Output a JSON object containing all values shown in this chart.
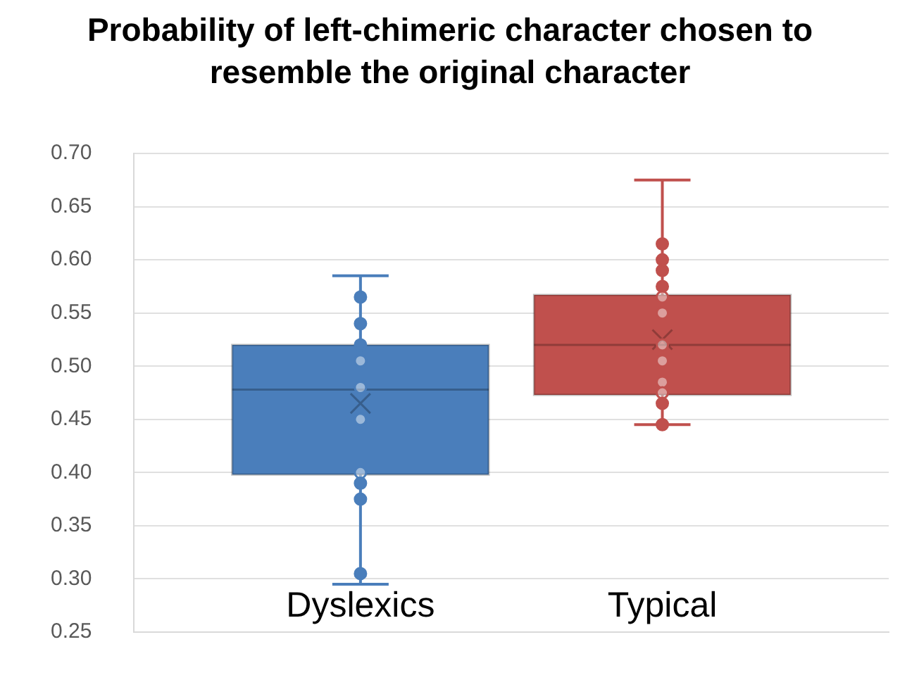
{
  "chart_data": {
    "type": "box",
    "title": "Probability of left-chimeric character chosen to resemble the original character",
    "categories": [
      "Dyslexics",
      "Typical"
    ],
    "colors": [
      "#4a7ebb",
      "#c0504d"
    ],
    "boxes": [
      {
        "low": 0.295,
        "q1": 0.398,
        "median": 0.478,
        "q3": 0.52,
        "high": 0.585,
        "mean": 0.465
      },
      {
        "low": 0.445,
        "q1": 0.473,
        "median": 0.52,
        "q3": 0.567,
        "high": 0.675,
        "mean": 0.525
      }
    ],
    "series": [
      {
        "type": "scatter",
        "x": [
          "Dyslexics",
          "Dyslexics",
          "Dyslexics",
          "Dyslexics",
          "Dyslexics",
          "Dyslexics",
          "Dyslexics",
          "Dyslexics",
          "Dyslexics",
          "Dyslexics",
          "Typical",
          "Typical",
          "Typical",
          "Typical",
          "Typical",
          "Typical",
          "Typical",
          "Typical",
          "Typical",
          "Typical",
          "Typical",
          "Typical"
        ],
        "values": [
          0.565,
          0.54,
          0.52,
          0.505,
          0.48,
          0.45,
          0.4,
          0.39,
          0.375,
          0.305,
          0.615,
          0.6,
          0.59,
          0.575,
          0.565,
          0.55,
          0.52,
          0.505,
          0.485,
          0.475,
          0.465,
          0.445
        ],
        "colors": [
          "#4a7ebb",
          "#4a7ebb",
          "#4a7ebb",
          "#4a7ebb",
          "#4a7ebb",
          "#4a7ebb",
          "#4a7ebb",
          "#4a7ebb",
          "#4a7ebb",
          "#4a7ebb",
          "#c0504d",
          "#c0504d",
          "#c0504d",
          "#c0504d",
          "#c0504d",
          "#c0504d",
          "#c0504d",
          "#c0504d",
          "#c0504d",
          "#c0504d",
          "#c0504d",
          "#c0504d"
        ]
      }
    ],
    "marker": "circle",
    "ylim": [
      0.25,
      0.7
    ],
    "yticks": [
      {
        "value": 0.25,
        "label": "0.25"
      },
      {
        "value": 0.3,
        "label": "0.30"
      },
      {
        "value": 0.35,
        "label": "0.35"
      },
      {
        "value": 0.4,
        "label": "0.40"
      },
      {
        "value": 0.45,
        "label": "0.45"
      },
      {
        "value": 0.5,
        "label": "0.50"
      },
      {
        "value": 0.55,
        "label": "0.55"
      },
      {
        "value": 0.6,
        "label": "0.60"
      },
      {
        "value": 0.65,
        "label": "0.65"
      },
      {
        "value": 0.7,
        "label": "0.70"
      }
    ],
    "grid": "y",
    "legend": false
  }
}
